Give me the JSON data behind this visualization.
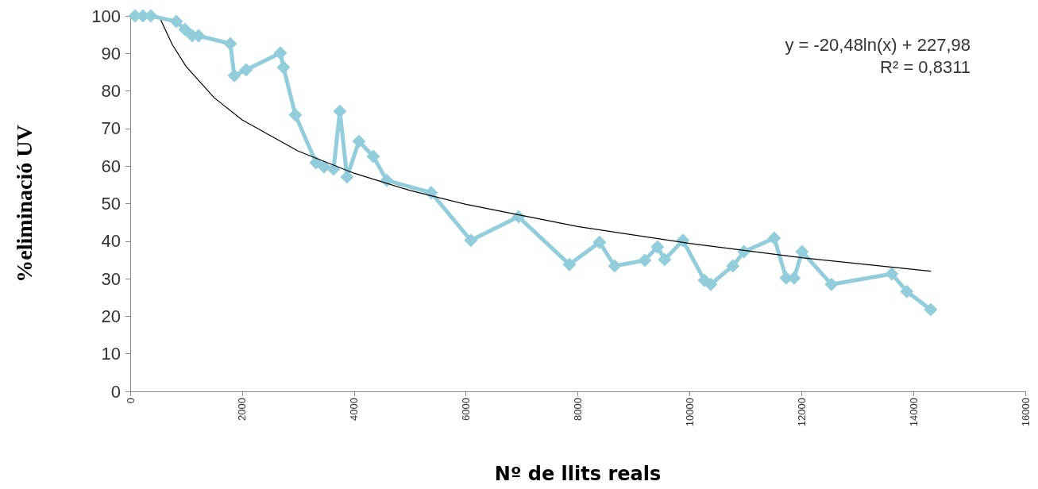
{
  "chart_data": {
    "type": "line",
    "xlabel": "Nº de llits reals",
    "ylabel": "%eliminació UV",
    "xlim": [
      0,
      16000
    ],
    "xticks": [
      0,
      2000,
      4000,
      6000,
      8000,
      10000,
      12000,
      14000,
      16000
    ],
    "ylim": [
      0,
      100
    ],
    "yticks": [
      0,
      10,
      20,
      30,
      40,
      50,
      60,
      70,
      80,
      90,
      100
    ],
    "grid": false,
    "annotations": [
      "y = -20,48ln(x) + 227,98",
      "R² = 0,8311"
    ],
    "series": [
      {
        "color": "#92cddc",
        "marker": "diamond",
        "line_style": "solid",
        "x": [
          85,
          227,
          369,
          823,
          979,
          1107,
          1221,
          1789,
          1860,
          2072,
          2683,
          2740,
          2952,
          3321,
          3463,
          3634,
          3747,
          3875,
          4088,
          4344,
          4585,
          5380,
          6089,
          6941,
          7850,
          8389,
          8659,
          9198,
          9425,
          9553,
          9879,
          10263,
          10376,
          10773,
          10972,
          11512,
          11725,
          11867,
          12009,
          12534,
          13613,
          13882,
          14308
        ],
        "values": [
          100,
          100,
          100,
          98.5,
          96.4,
          94.7,
          94.7,
          92.6,
          84.1,
          85.6,
          90.1,
          86.3,
          73.6,
          60.9,
          59.8,
          59.2,
          74.6,
          57.1,
          66.6,
          62.6,
          56.2,
          52.9,
          40.2,
          46.5,
          33.8,
          39.7,
          33.4,
          34.9,
          38.5,
          35.1,
          40.2,
          29.6,
          28.5,
          33.4,
          37.2,
          40.8,
          30.2,
          30.2,
          37.2,
          28.5,
          31.3,
          26.6,
          21.8
        ]
      },
      {
        "type": "line",
        "color": "#000000",
        "marker": "none",
        "line_style": "solid",
        "x": [
          550,
          750,
          1000,
          1500,
          2000,
          3000,
          4000,
          5000,
          6000,
          8000,
          10000,
          12000,
          14308
        ],
        "values": [
          98.8,
          92.4,
          86.5,
          78.2,
          72.3,
          64.0,
          58.1,
          53.5,
          49.8,
          43.9,
          39.4,
          35.6,
          32.0
        ]
      }
    ]
  }
}
